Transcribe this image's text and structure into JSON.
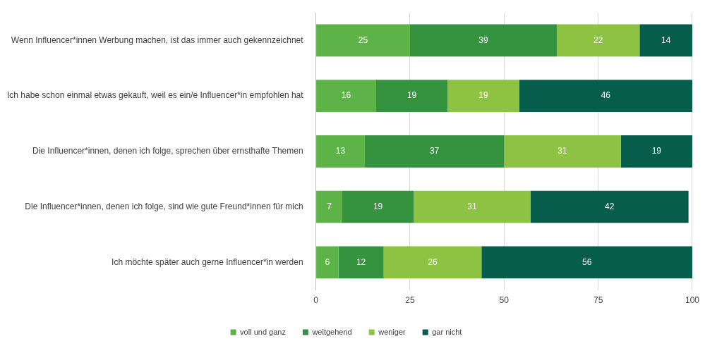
{
  "chart_data": {
    "type": "bar",
    "orientation": "horizontal",
    "stacked": true,
    "data_labels": true,
    "grid": true,
    "legend": "bottom",
    "categories": [
      "Wenn Influencer*innen Werbung machen, ist das immer auch gekennzeichnet",
      "Ich habe schon einmal etwas gekauft, weil es ein/e Influencer*in empfohlen hat",
      "Die Influencer*innen, denen ich folge, sprechen über ernsthafte Themen",
      "Die Influencer*innen, denen ich folge, sind wie gute Freund*innen für mich",
      "Ich möchte später auch gerne Influencer*in werden"
    ],
    "series": [
      {
        "name": "voll und ganz",
        "color": "#5db348",
        "values": [
          25,
          16,
          13,
          7,
          6
        ]
      },
      {
        "name": "weitgehend",
        "color": "#35923e",
        "values": [
          39,
          19,
          37,
          19,
          12
        ]
      },
      {
        "name": "weniger",
        "color": "#8dc243",
        "values": [
          22,
          19,
          31,
          31,
          26
        ]
      },
      {
        "name": "gar nicht",
        "color": "#075d4c",
        "values": [
          14,
          46,
          19,
          42,
          56
        ]
      }
    ],
    "xlim": [
      0,
      100
    ],
    "xticks": [
      0,
      25,
      50,
      75,
      100
    ]
  }
}
